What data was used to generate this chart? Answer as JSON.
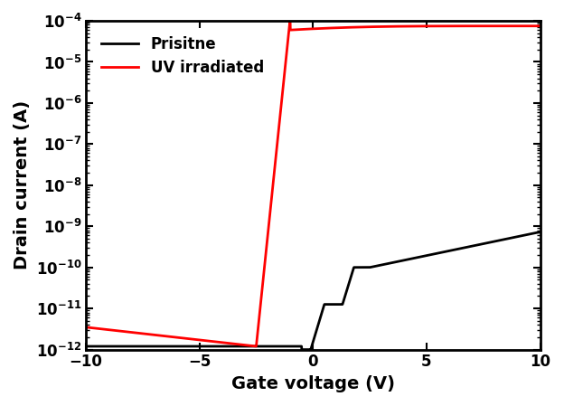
{
  "title": "",
  "xlabel": "Gate voltage (V)",
  "ylabel": "Drain current (A)",
  "xlim": [
    -10,
    10
  ],
  "ylim_log": [
    -12,
    -4
  ],
  "legend_entries": [
    "Prisitne",
    "UV irradiated"
  ],
  "pristine_color": "#000000",
  "uv_color": "#ff0000",
  "linewidth": 2.0,
  "xlabel_fontsize": 14,
  "ylabel_fontsize": 14,
  "legend_fontsize": 12,
  "tick_fontsize": 12
}
